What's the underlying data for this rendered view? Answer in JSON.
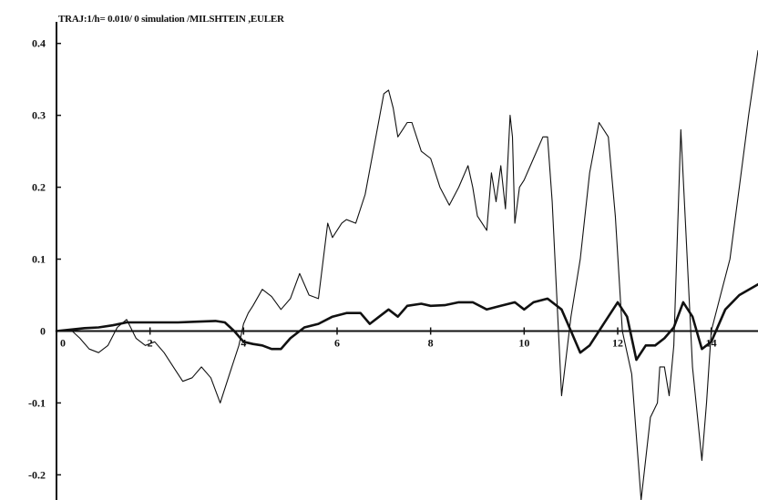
{
  "chart_data": {
    "type": "line",
    "title": "TRAJ:1/h= 0.010/    0 simulation /MILSHTEIN ,EULER",
    "xlabel": "",
    "ylabel": "",
    "xlim": [
      0,
      15
    ],
    "ylim": [
      -0.235,
      0.43
    ],
    "x_ticks": [
      0,
      2,
      4,
      6,
      8,
      10,
      12,
      14
    ],
    "x_tick_labels": [
      "0",
      "2",
      "4",
      "6",
      "8",
      "10",
      "12",
      "14"
    ],
    "y_ticks": [
      0.4,
      0.3,
      0.2,
      0.1,
      0,
      -0.1,
      -0.2
    ],
    "y_tick_labels": [
      "0.4",
      "0.3",
      "0.2",
      "0.1",
      "0",
      "-0.1",
      "-0.2"
    ],
    "grid": false,
    "legend": false,
    "series": [
      {
        "style": "thin",
        "color": "#111111",
        "x": [
          0,
          0.3,
          0.5,
          0.7,
          0.9,
          1.1,
          1.3,
          1.5,
          1.7,
          1.9,
          2.1,
          2.3,
          2.5,
          2.7,
          2.9,
          3.1,
          3.3,
          3.5,
          3.7,
          3.9,
          4.0,
          4.1,
          4.2,
          4.4,
          4.6,
          4.8,
          5.0,
          5.2,
          5.4,
          5.6,
          5.8,
          5.9,
          6.0,
          6.1,
          6.2,
          6.4,
          6.6,
          6.8,
          7.0,
          7.1,
          7.2,
          7.3,
          7.4,
          7.5,
          7.6,
          7.8,
          8.0,
          8.2,
          8.4,
          8.6,
          8.8,
          8.9,
          9.0,
          9.2,
          9.3,
          9.4,
          9.5,
          9.6,
          9.7,
          9.75,
          9.8,
          9.9,
          10.0,
          10.2,
          10.4,
          10.5,
          10.6,
          10.8,
          11.0,
          11.2,
          11.4,
          11.6,
          11.8,
          11.95,
          12.1,
          12.3,
          12.5,
          12.7,
          12.85,
          12.9,
          13.0,
          13.1,
          13.2,
          13.35,
          13.45,
          13.6,
          13.8,
          13.9,
          14.0,
          14.2,
          14.4,
          14.6,
          14.8,
          15.0
        ],
        "y": [
          0,
          0.002,
          -0.01,
          -0.025,
          -0.03,
          -0.02,
          0.005,
          0.016,
          -0.01,
          -0.02,
          -0.015,
          -0.03,
          -0.05,
          -0.07,
          -0.065,
          -0.05,
          -0.065,
          -0.1,
          -0.06,
          -0.02,
          0.01,
          0.025,
          0.035,
          0.058,
          0.048,
          0.03,
          0.045,
          0.08,
          0.05,
          0.045,
          0.15,
          0.13,
          0.14,
          0.15,
          0.155,
          0.15,
          0.19,
          0.26,
          0.33,
          0.335,
          0.31,
          0.27,
          0.28,
          0.29,
          0.29,
          0.25,
          0.24,
          0.2,
          0.175,
          0.2,
          0.23,
          0.2,
          0.16,
          0.14,
          0.22,
          0.18,
          0.23,
          0.17,
          0.3,
          0.27,
          0.15,
          0.2,
          0.21,
          0.24,
          0.27,
          0.27,
          0.18,
          -0.09,
          0.02,
          0.1,
          0.22,
          0.29,
          0.27,
          0.16,
          0.0,
          -0.06,
          -0.235,
          -0.12,
          -0.1,
          -0.05,
          -0.05,
          -0.09,
          -0.02,
          0.28,
          0.15,
          -0.05,
          -0.18,
          -0.1,
          0.0,
          0.05,
          0.1,
          0.2,
          0.3,
          0.39
        ]
      },
      {
        "style": "thick",
        "color": "#111111",
        "x": [
          0,
          0.3,
          0.6,
          0.9,
          1.2,
          1.5,
          1.8,
          2.2,
          2.6,
          3.0,
          3.4,
          3.6,
          3.8,
          4.0,
          4.2,
          4.4,
          4.6,
          4.8,
          5.0,
          5.3,
          5.6,
          5.9,
          6.2,
          6.5,
          6.7,
          6.9,
          7.1,
          7.3,
          7.5,
          7.8,
          8.0,
          8.3,
          8.6,
          8.9,
          9.2,
          9.5,
          9.8,
          10.0,
          10.2,
          10.5,
          10.8,
          11.0,
          11.2,
          11.4,
          11.7,
          12.0,
          12.2,
          12.4,
          12.6,
          12.8,
          13.0,
          13.2,
          13.4,
          13.6,
          13.8,
          14.0,
          14.3,
          14.6,
          15.0
        ],
        "y": [
          0,
          0.002,
          0.004,
          0.005,
          0.008,
          0.012,
          0.012,
          0.012,
          0.012,
          0.013,
          0.014,
          0.012,
          0.0,
          -0.015,
          -0.018,
          -0.02,
          -0.025,
          -0.025,
          -0.01,
          0.005,
          0.01,
          0.02,
          0.025,
          0.025,
          0.01,
          0.02,
          0.03,
          0.02,
          0.035,
          0.038,
          0.035,
          0.036,
          0.04,
          0.04,
          0.03,
          0.035,
          0.04,
          0.03,
          0.04,
          0.045,
          0.03,
          0.0,
          -0.03,
          -0.02,
          0.01,
          0.04,
          0.02,
          -0.04,
          -0.02,
          -0.02,
          -0.01,
          0.005,
          0.04,
          0.02,
          -0.025,
          -0.015,
          0.03,
          0.05,
          0.065
        ]
      }
    ]
  }
}
